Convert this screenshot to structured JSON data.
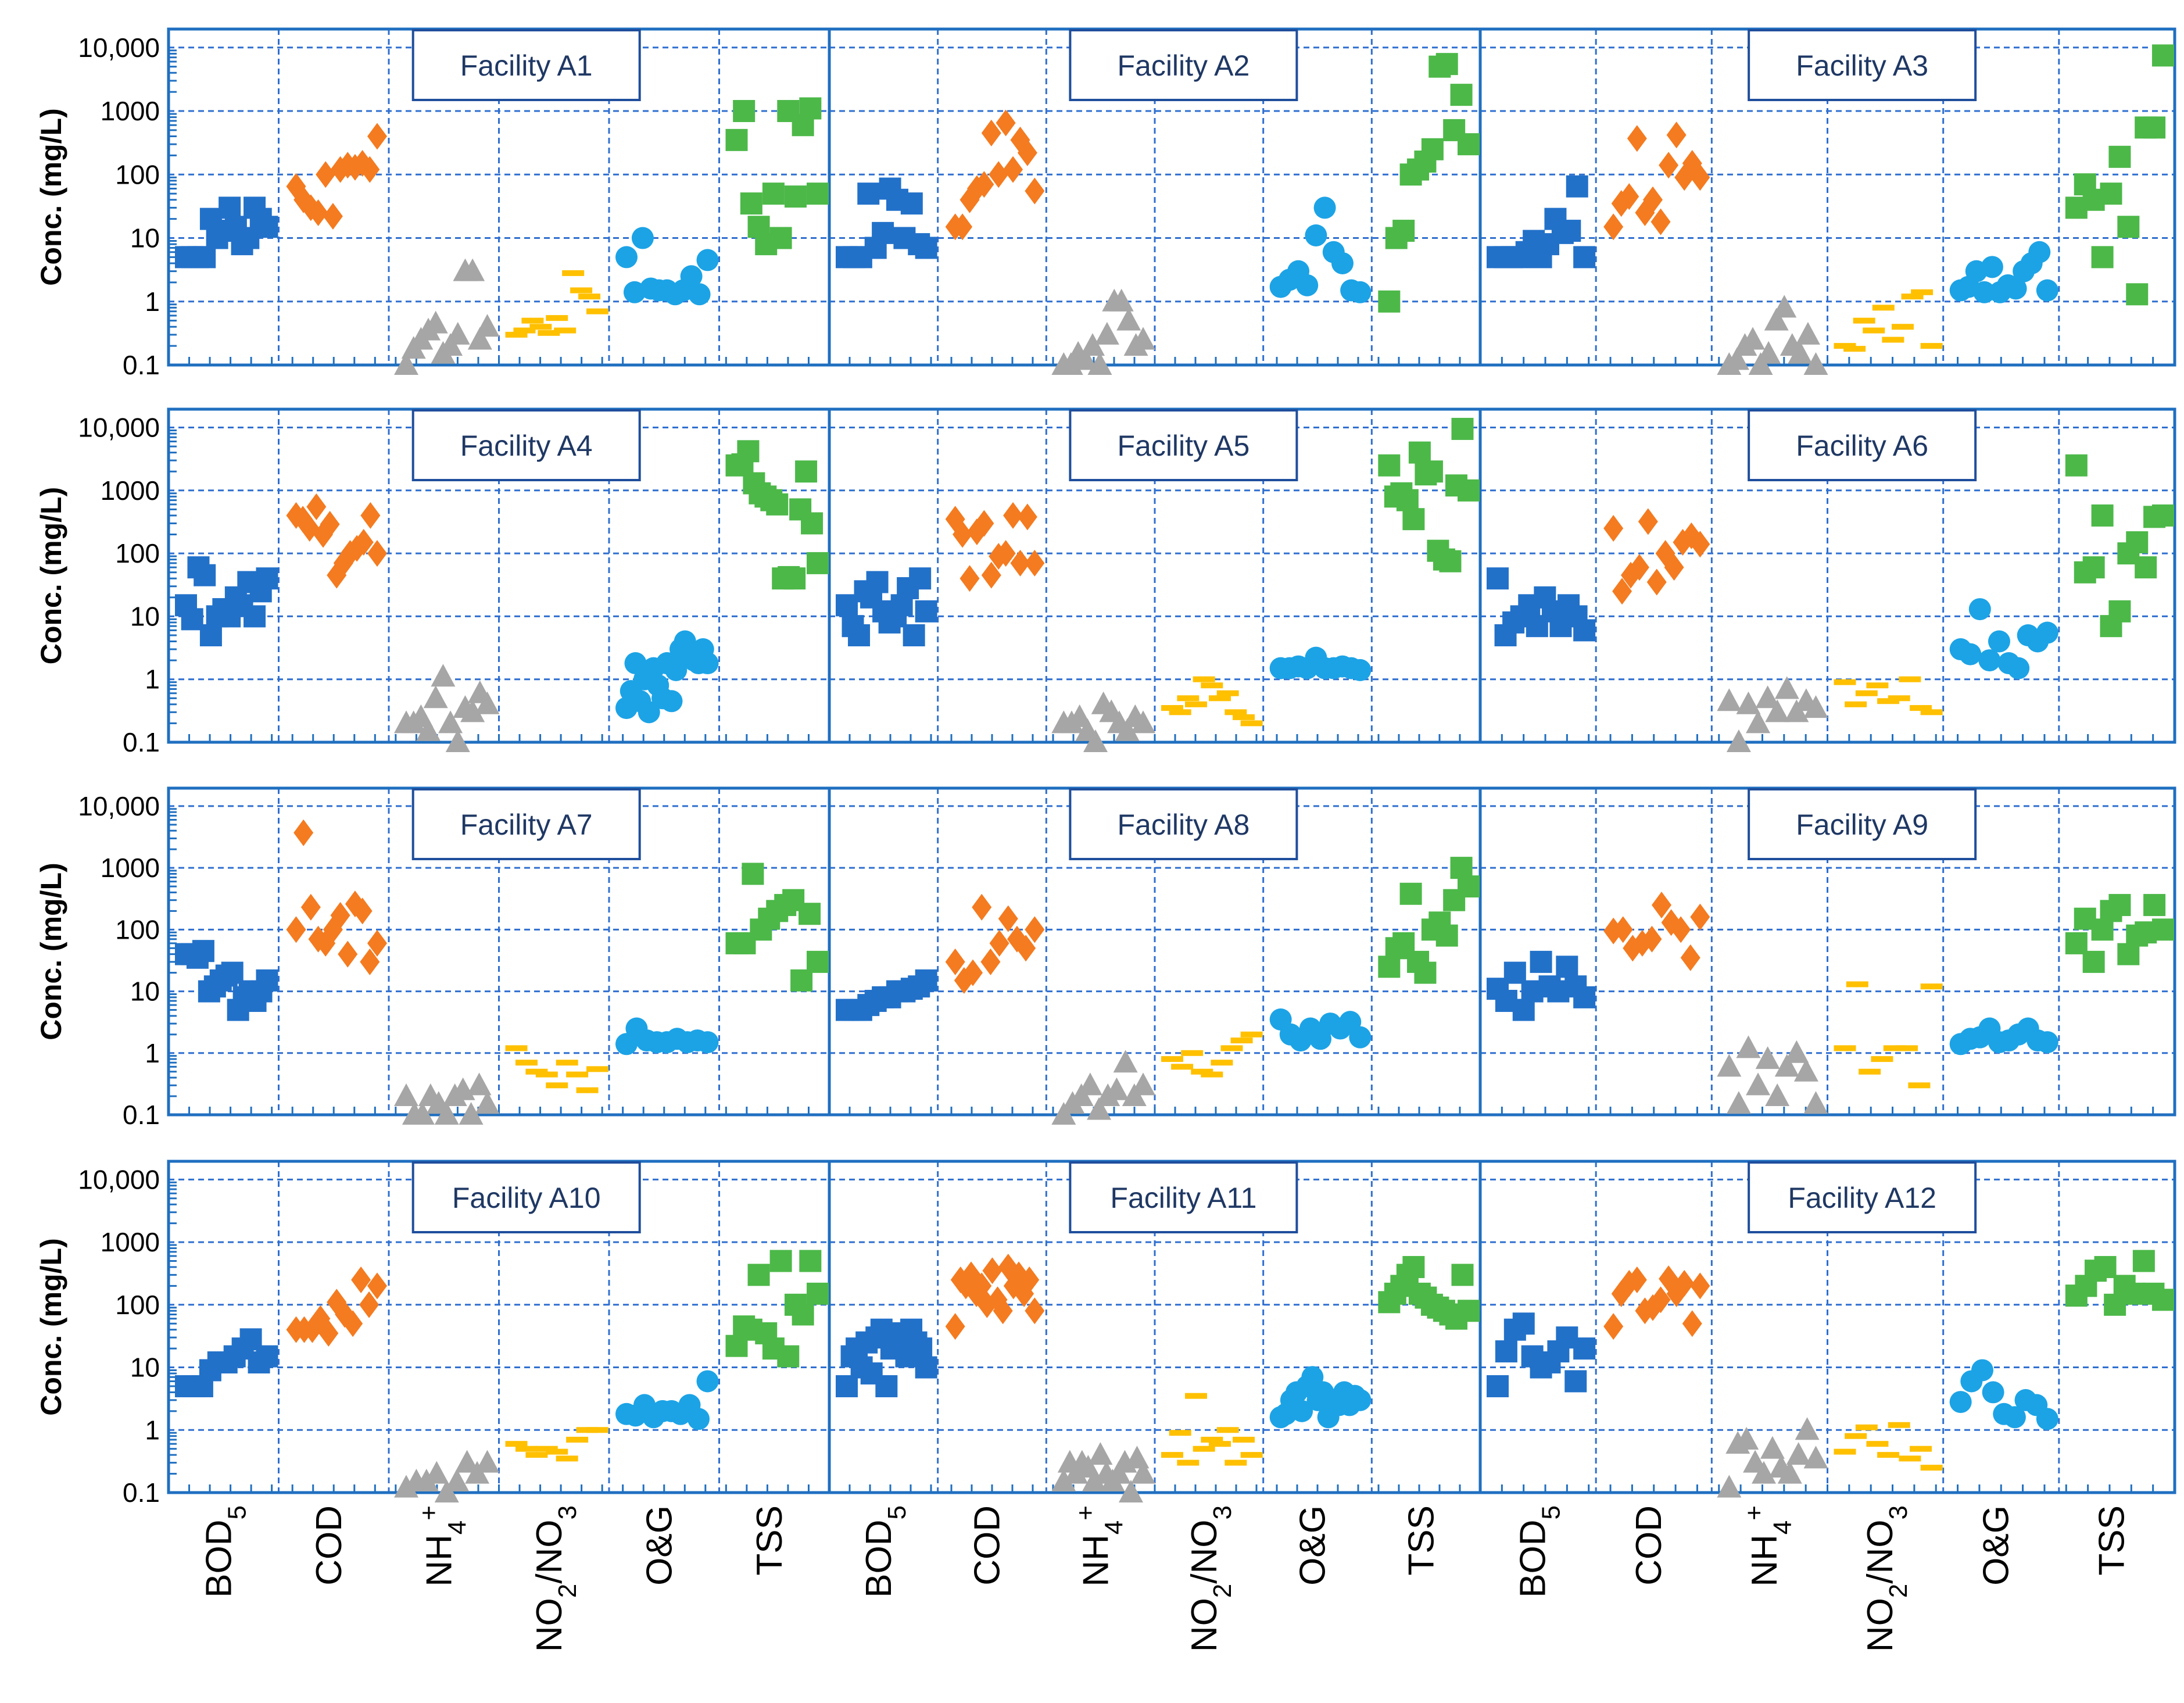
{
  "chart_data": {
    "type": "scatter",
    "ylabel": "Conc. (mg/L)",
    "yscale": "log",
    "ylim": [
      0.1,
      10000
    ],
    "ytick_labels": [
      "0.1",
      "1",
      "10",
      "100",
      "1000",
      "10,000"
    ],
    "ytick_values": [
      0.1,
      1,
      10,
      100,
      1000,
      10000
    ],
    "categories": [
      {
        "key": "BOD5",
        "base": "BOD",
        "sub": "5",
        "sup": ""
      },
      {
        "key": "COD",
        "base": "COD",
        "sub": "",
        "sup": ""
      },
      {
        "key": "NH4+",
        "base": "NH",
        "sub": "4",
        "sup": "+"
      },
      {
        "key": "NO2/NO3",
        "base": "NO",
        "sub": "2",
        "mid": "/NO",
        "sub2": "3",
        "sup": ""
      },
      {
        "key": "O&G",
        "base": "O&G",
        "sub": "",
        "sup": ""
      },
      {
        "key": "TSS",
        "base": "TSS",
        "sub": "",
        "sup": ""
      }
    ],
    "series_styles": {
      "BOD5": {
        "marker": "square",
        "color": "#2271c9"
      },
      "COD": {
        "marker": "diamond",
        "color": "#f47b20"
      },
      "NH4+": {
        "marker": "triangle",
        "color": "#a6a6a6"
      },
      "NO2/NO3": {
        "marker": "dash",
        "color": "#ffc000"
      },
      "O&G": {
        "marker": "circle",
        "color": "#1ca3e6"
      },
      "TSS": {
        "marker": "square",
        "color": "#4cb848"
      }
    },
    "panels": [
      {
        "title": "Facility A1",
        "series": {
          "BOD5": [
            5,
            5,
            5,
            5,
            20,
            10,
            13,
            30,
            15,
            8,
            10,
            30,
            20,
            15
          ],
          "COD": [
            65,
            40,
            30,
            25,
            100,
            22,
            120,
            140,
            130,
            150,
            120,
            400
          ],
          "NH4+": [
            0.1,
            0.18,
            0.25,
            0.35,
            0.45,
            0.15,
            0.2,
            0.3,
            3,
            3,
            0.25,
            0.4
          ],
          "NO2/NO3": [
            0.3,
            0.35,
            0.5,
            0.4,
            0.32,
            0.55,
            0.35,
            2.8,
            1.5,
            1.2,
            0.7
          ],
          "O&G": [
            5,
            1.4,
            10,
            1.6,
            1.5,
            1.5,
            1.3,
            1.5,
            2.5,
            1.3,
            4.5
          ],
          "TSS": [
            350,
            1000,
            35,
            15,
            8,
            50,
            10,
            1000,
            45,
            600,
            1100,
            50
          ]
        }
      },
      {
        "title": "Facility A2",
        "series": {
          "BOD5": [
            5,
            5,
            5,
            50,
            7,
            12,
            60,
            40,
            10,
            35,
            8,
            7
          ],
          "COD": [
            15,
            15,
            40,
            60,
            70,
            450,
            100,
            650,
            120,
            350,
            220,
            55
          ],
          "NH4+": [
            0.1,
            0.1,
            0.15,
            0.12,
            0.2,
            0.1,
            0.3,
            1,
            1,
            0.5,
            0.2,
            0.25
          ],
          "NO2/NO3": [],
          "O&G": [
            1.7,
            2.2,
            3,
            1.8,
            11,
            30,
            6,
            4,
            1.5,
            1.4
          ],
          "TSS": [
            1,
            10,
            13,
            100,
            120,
            160,
            250,
            5000,
            5500,
            500,
            1800,
            300
          ]
        }
      },
      {
        "title": "Facility A3",
        "series": {
          "BOD5": [
            5,
            5,
            5,
            5,
            6,
            9,
            5,
            8,
            20,
            12,
            13,
            65,
            5
          ],
          "COD": [
            15,
            35,
            45,
            370,
            25,
            40,
            18,
            140,
            420,
            90,
            150,
            90
          ],
          "NH4+": [
            0.1,
            0.12,
            0.2,
            0.25,
            0.1,
            0.15,
            0.5,
            0.8,
            0.2,
            0.15,
            0.3,
            0.1
          ],
          "NO2/NO3": [
            0.2,
            0.18,
            0.5,
            0.35,
            0.8,
            0.25,
            0.4,
            1.2,
            1.4,
            0.2
          ],
          "O&G": [
            1.5,
            1.7,
            3,
            1.4,
            3.5,
            1.4,
            1.8,
            1.6,
            3,
            4,
            6,
            1.5
          ],
          "TSS": [
            30,
            70,
            40,
            5,
            50,
            190,
            15,
            1.3,
            550,
            550,
            7500
          ]
        }
      },
      {
        "title": "Facility A4",
        "series": {
          "BOD5": [
            15,
            9,
            60,
            45,
            5,
            10,
            13,
            10,
            20,
            15,
            35,
            10,
            25,
            40
          ],
          "COD": [
            400,
            350,
            250,
            550,
            200,
            290,
            45,
            70,
            100,
            120,
            150,
            400,
            100
          ],
          "NH4+": [
            0.2,
            0.2,
            0.25,
            0.15,
            0.5,
            1.1,
            0.2,
            0.1,
            0.35,
            0.3,
            0.6,
            0.4
          ],
          "NO2/NO3": [],
          "O&G": [
            0.35,
            0.65,
            1.8,
            0.45,
            1,
            0.3,
            1.5,
            0.8,
            0.5,
            1.8,
            0.45,
            1.4,
            3,
            4,
            2.5,
            2,
            1.8,
            3,
            1.8
          ],
          "TSS": [
            2500,
            2600,
            4200,
            1300,
            900,
            800,
            700,
            600,
            40,
            42,
            40,
            500,
            2000,
            300,
            70
          ]
        }
      },
      {
        "title": "Facility A5",
        "series": {
          "BOD5": [
            15,
            7,
            5,
            25,
            20,
            35,
            12,
            8,
            10,
            15,
            28,
            5,
            40,
            12
          ],
          "COD": [
            350,
            200,
            40,
            220,
            300,
            45,
            90,
            100,
            400,
            70,
            380,
            70
          ],
          "NH4+": [
            0.2,
            0.2,
            0.25,
            0.15,
            0.1,
            0.4,
            0.3,
            0.2,
            0.15,
            0.25,
            0.2
          ],
          "NO2/NO3": [
            0.35,
            0.3,
            0.5,
            0.4,
            1,
            0.8,
            0.5,
            0.6,
            0.3,
            0.25,
            0.2
          ],
          "O&G": [
            1.5,
            1.5,
            1.6,
            1.5,
            2.2,
            1.5,
            1.5,
            1.6,
            1.5,
            1.4
          ],
          "TSS": [
            2500,
            800,
            900,
            700,
            350,
            4000,
            1800,
            2000,
            110,
            80,
            75,
            1200,
            9500,
            1000
          ]
        }
      },
      {
        "title": "Facility A6",
        "series": {
          "BOD5": [
            40,
            5,
            8,
            10,
            15,
            7,
            20,
            12,
            7,
            15,
            10,
            6
          ],
          "COD": [
            250,
            25,
            45,
            60,
            320,
            35,
            100,
            60,
            150,
            190,
            140
          ],
          "NH4+": [
            0.45,
            0.1,
            0.4,
            0.2,
            0.5,
            0.3,
            0.7,
            0.3,
            0.45,
            0.35
          ],
          "NO2/NO3": [
            0.9,
            0.4,
            0.6,
            0.8,
            0.45,
            0.5,
            1,
            0.35,
            0.3
          ],
          "O&G": [
            3,
            2.5,
            13,
            2,
            4,
            1.8,
            1.5,
            5,
            4,
            5.5
          ],
          "TSS": [
            2500,
            50,
            60,
            400,
            7,
            12,
            100,
            150,
            60,
            380,
            400
          ]
        }
      },
      {
        "title": "Facility A7",
        "series": {
          "BOD5": [
            40,
            40,
            35,
            45,
            10,
            12,
            15,
            18,
            20,
            5,
            8,
            10,
            7,
            10,
            15
          ],
          "COD": [
            100,
            3700,
            230,
            70,
            60,
            100,
            170,
            40,
            260,
            200,
            30,
            60
          ],
          "NH4+": [
            0.2,
            0.1,
            0.1,
            0.2,
            0.15,
            0.1,
            0.2,
            0.25,
            0.1,
            0.3,
            0.15
          ],
          "NO2/NO3": [
            1.2,
            0.7,
            0.5,
            0.45,
            0.3,
            0.7,
            0.45,
            0.25,
            0.55
          ],
          "O&G": [
            1.4,
            2.5,
            1.6,
            1.5,
            1.5,
            1.7,
            1.5,
            1.6,
            1.5
          ],
          "TSS": [
            60,
            60,
            800,
            100,
            150,
            200,
            250,
            300,
            15,
            180,
            30
          ]
        }
      },
      {
        "title": "Facility A8",
        "series": {
          "BOD5": [
            5,
            5,
            5,
            6,
            7,
            8,
            8,
            10,
            10,
            11,
            12,
            15
          ],
          "COD": [
            30,
            15,
            20,
            230,
            30,
            60,
            150,
            70,
            50,
            100
          ],
          "NH4+": [
            0.1,
            0.15,
            0.2,
            0.3,
            0.12,
            0.2,
            0.25,
            0.7,
            0.2,
            0.3
          ],
          "NO2/NO3": [
            0.8,
            0.6,
            1,
            0.5,
            0.45,
            0.7,
            1.2,
            1.6,
            2
          ],
          "O&G": [
            3.5,
            2,
            1.6,
            2.5,
            1.7,
            3,
            2.5,
            3.2,
            1.8
          ],
          "TSS": [
            25,
            50,
            60,
            380,
            30,
            20,
            100,
            130,
            80,
            300,
            1000,
            500
          ]
        }
      },
      {
        "title": "Facility A9",
        "series": {
          "BOD5": [
            11,
            7,
            20,
            5,
            10,
            30,
            12,
            10,
            25,
            12,
            8
          ],
          "COD": [
            95,
            100,
            50,
            60,
            70,
            250,
            130,
            100,
            35,
            160
          ],
          "NH4+": [
            0.6,
            0.15,
            1.2,
            0.3,
            0.8,
            0.2,
            0.6,
            1,
            0.5,
            0.15
          ],
          "NO2/NO3": [
            1.2,
            13,
            0.5,
            0.8,
            1.2,
            1.2,
            0.3,
            12
          ],
          "O&G": [
            1.4,
            1.7,
            1.8,
            2.5,
            1.5,
            1.6,
            2,
            2.5,
            1.6,
            1.5
          ],
          "TSS": [
            60,
            150,
            30,
            100,
            200,
            250,
            40,
            80,
            90,
            250,
            100
          ]
        }
      },
      {
        "title": "Facility A10",
        "series": {
          "BOD5": [
            5,
            5,
            5,
            9,
            12,
            12,
            15,
            20,
            28,
            12,
            15
          ],
          "COD": [
            40,
            40,
            40,
            60,
            35,
            110,
            70,
            50,
            250,
            100,
            200
          ],
          "NH4+": [
            0.12,
            0.15,
            0.15,
            0.2,
            0.1,
            0.15,
            0.3,
            0.2,
            0.3
          ],
          "NO2/NO3": [
            0.6,
            0.5,
            0.4,
            0.5,
            0.45,
            0.35,
            0.7,
            1,
            1
          ],
          "O&G": [
            1.8,
            1.7,
            2.5,
            1.6,
            2,
            2,
            1.8,
            2.5,
            1.5,
            6
          ],
          "TSS": [
            22,
            45,
            40,
            300,
            35,
            20,
            500,
            15,
            100,
            70,
            500,
            150
          ]
        }
      },
      {
        "title": "Facility A11",
        "series": {
          "BOD5": [
            5,
            15,
            20,
            10,
            25,
            8,
            30,
            40,
            5,
            20,
            30,
            35,
            15,
            40,
            25,
            20,
            10
          ],
          "COD": [
            45,
            250,
            200,
            300,
            150,
            200,
            100,
            350,
            120,
            80,
            400,
            200,
            300,
            150,
            250,
            80
          ],
          "NH4+": [
            0.15,
            0.3,
            0.2,
            0.3,
            0.25,
            0.15,
            0.4,
            0.2,
            0.15,
            0.2,
            0.3,
            0.1,
            0.35,
            0.2
          ],
          "NO2/NO3": [
            0.4,
            0.9,
            0.3,
            3.5,
            0.5,
            0.7,
            0.6,
            1,
            0.3,
            0.7,
            0.4
          ],
          "O&G": [
            1.6,
            1.8,
            3,
            4,
            2,
            5,
            7,
            3,
            4,
            1.6,
            3,
            2.5,
            4,
            2.5,
            3.5,
            3
          ],
          "TSS": [
            110,
            150,
            200,
            300,
            400,
            150,
            130,
            100,
            90,
            80,
            70,
            60,
            300,
            80
          ]
        }
      },
      {
        "title": "Facility A12",
        "series": {
          "BOD5": [
            5,
            18,
            40,
            50,
            15,
            10,
            12,
            18,
            30,
            6,
            20
          ],
          "COD": [
            45,
            150,
            220,
            250,
            80,
            90,
            120,
            260,
            150,
            220,
            50,
            200
          ],
          "NH4+": [
            0.12,
            0.6,
            0.7,
            0.3,
            0.2,
            0.5,
            0.25,
            0.2,
            0.4,
            1,
            0.35
          ],
          "NO2/NO3": [
            0.45,
            0.8,
            1.1,
            0.6,
            0.4,
            1.2,
            0.35,
            0.5,
            0.25
          ],
          "O&G": [
            2.8,
            6,
            9,
            4,
            1.8,
            1.6,
            3,
            2.5,
            1.5
          ],
          "TSS": [
            140,
            200,
            350,
            400,
            100,
            200,
            150,
            500,
            150,
            120
          ]
        }
      }
    ]
  }
}
